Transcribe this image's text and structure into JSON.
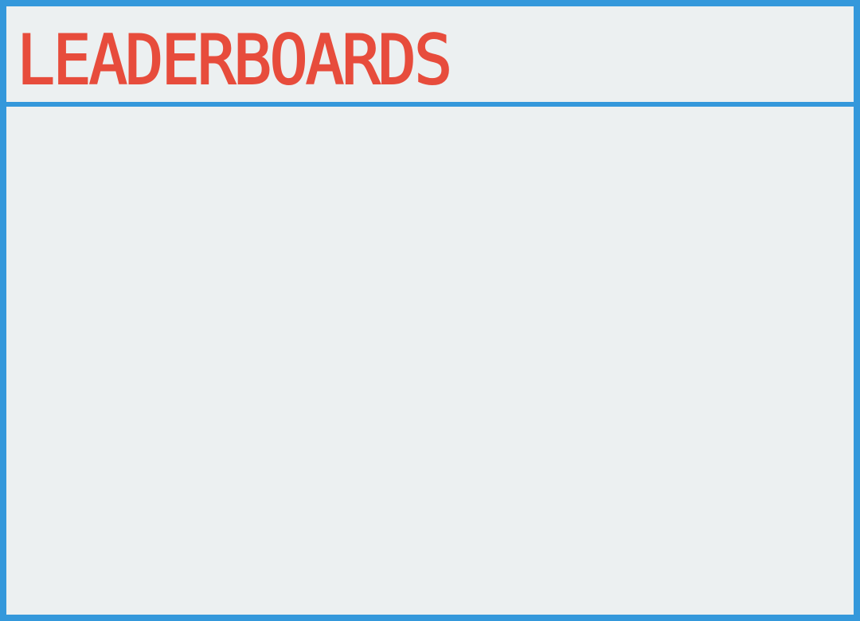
{
  "header": {
    "title": "LEADERBOARDS"
  },
  "colors": {
    "border": "#3498db",
    "title": "#e74c3c",
    "background": "#ecf0f1"
  }
}
